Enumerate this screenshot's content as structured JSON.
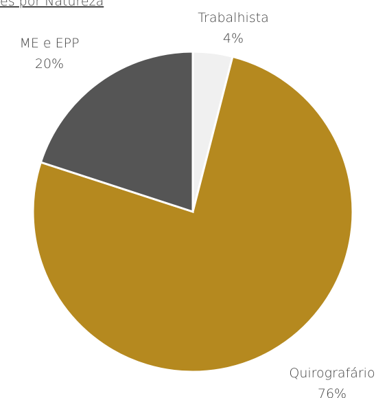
{
  "chart_data": {
    "type": "pie",
    "title": "es por Natureza",
    "categories": [
      "Trabalhista",
      "Quirografário",
      "ME e EPP"
    ],
    "values": [
      4,
      76,
      20
    ],
    "value_labels": [
      "4%",
      "76%",
      "20%"
    ],
    "colors": [
      "#f0f0f0",
      "#b5891f",
      "#555555"
    ]
  }
}
